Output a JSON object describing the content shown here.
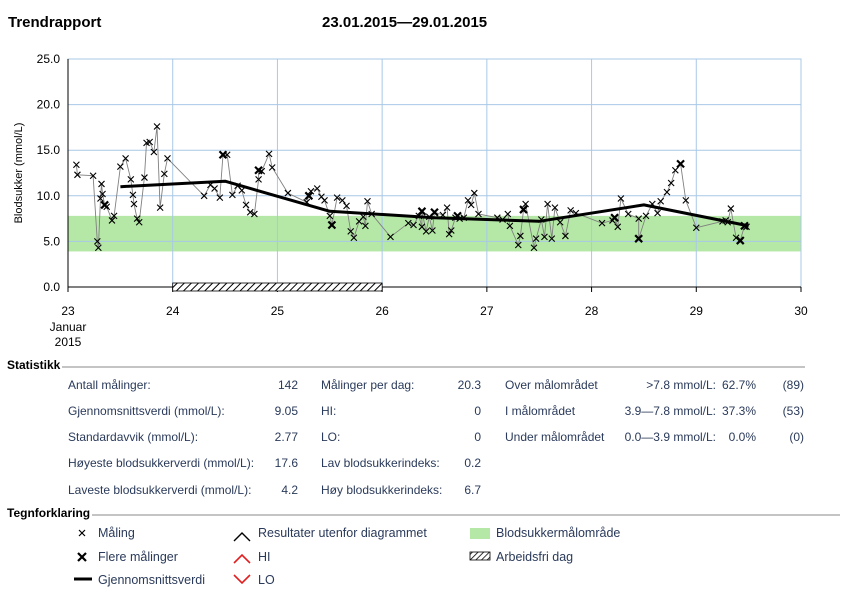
{
  "header": {
    "title": "Trendrapport",
    "date_range": "23.01.2015—29.01.2015"
  },
  "colors": {
    "target_band": "#b5e8a6",
    "grid": "#a9c8e6",
    "measurement_line": "#808080",
    "average_line": "#000000",
    "hi_marker": "#e02020",
    "lo_marker": "#e02020"
  },
  "chart_data": {
    "type": "scatter",
    "title": "",
    "ylabel": "Blodsukker (mmol/L)",
    "ylim": [
      0,
      25
    ],
    "yticks": [
      "25.0",
      "20.0",
      "15.0",
      "10.0",
      "5.0",
      "0.0"
    ],
    "xlim": [
      23,
      30
    ],
    "xticks": [
      "23",
      "24",
      "25",
      "26",
      "27",
      "28",
      "29",
      "30"
    ],
    "xtick_sub": [
      "Januar",
      "2015"
    ],
    "grid": true,
    "target_range": [
      3.9,
      7.8
    ],
    "non_working_day": [
      24,
      26
    ],
    "series": [
      {
        "name": "Måling",
        "points": [
          [
            23.08,
            13.4
          ],
          [
            23.09,
            12.3
          ],
          [
            23.24,
            12.2
          ],
          [
            23.28,
            5.0
          ],
          [
            23.29,
            4.3
          ],
          [
            23.31,
            9.7
          ],
          [
            23.32,
            11.3
          ],
          [
            23.33,
            10.2
          ],
          [
            23.37,
            8.8
          ],
          [
            23.42,
            7.3
          ],
          [
            23.44,
            7.8
          ],
          [
            23.5,
            13.2
          ],
          [
            23.55,
            14.1
          ],
          [
            23.6,
            11.8
          ],
          [
            23.62,
            10.1
          ],
          [
            23.63,
            9.1
          ],
          [
            23.66,
            7.5
          ],
          [
            23.68,
            7.1
          ],
          [
            23.73,
            12.0
          ],
          [
            23.75,
            15.8
          ],
          [
            23.78,
            15.9
          ],
          [
            23.82,
            14.8
          ],
          [
            23.85,
            17.6
          ],
          [
            23.88,
            8.7
          ],
          [
            23.92,
            12.4
          ],
          [
            23.95,
            14.1
          ],
          [
            24.3,
            10.0
          ],
          [
            24.36,
            11.2
          ],
          [
            24.4,
            10.8
          ],
          [
            24.45,
            9.8
          ],
          [
            24.52,
            14.5
          ],
          [
            24.57,
            10.1
          ],
          [
            24.62,
            11.1
          ],
          [
            24.66,
            10.6
          ],
          [
            24.7,
            9.0
          ],
          [
            24.74,
            8.2
          ],
          [
            24.78,
            8.0
          ],
          [
            24.82,
            11.8
          ],
          [
            24.85,
            12.7
          ],
          [
            24.92,
            14.6
          ],
          [
            24.95,
            13.1
          ],
          [
            25.1,
            10.3
          ],
          [
            25.28,
            9.3
          ],
          [
            25.32,
            10.5
          ],
          [
            25.38,
            10.8
          ],
          [
            25.42,
            9.9
          ],
          [
            25.45,
            9.5
          ],
          [
            25.5,
            7.8
          ],
          [
            25.57,
            9.8
          ],
          [
            25.62,
            9.5
          ],
          [
            25.66,
            8.9
          ],
          [
            25.7,
            6.1
          ],
          [
            25.73,
            5.4
          ],
          [
            25.78,
            7.2
          ],
          [
            25.82,
            7.7
          ],
          [
            25.84,
            6.7
          ],
          [
            25.86,
            9.4
          ],
          [
            25.9,
            8.0
          ],
          [
            26.08,
            5.5
          ],
          [
            26.25,
            7.0
          ],
          [
            26.3,
            6.8
          ],
          [
            26.35,
            7.8
          ],
          [
            26.38,
            6.6
          ],
          [
            26.42,
            6.1
          ],
          [
            26.45,
            7.7
          ],
          [
            26.48,
            6.2
          ],
          [
            26.58,
            7.9
          ],
          [
            26.62,
            8.7
          ],
          [
            26.64,
            5.8
          ],
          [
            26.66,
            6.2
          ],
          [
            26.7,
            7.6
          ],
          [
            26.74,
            7.5
          ],
          [
            26.78,
            7.6
          ],
          [
            26.82,
            9.5
          ],
          [
            26.85,
            9.0
          ],
          [
            26.88,
            10.3
          ],
          [
            26.92,
            8.0
          ],
          [
            27.1,
            7.6
          ],
          [
            27.15,
            7.4
          ],
          [
            27.2,
            8.0
          ],
          [
            27.22,
            6.7
          ],
          [
            27.3,
            4.6
          ],
          [
            27.32,
            5.6
          ],
          [
            27.35,
            8.4
          ],
          [
            27.37,
            9.1
          ],
          [
            27.45,
            4.3
          ],
          [
            27.47,
            5.3
          ],
          [
            27.52,
            7.4
          ],
          [
            27.55,
            5.5
          ],
          [
            27.58,
            9.1
          ],
          [
            27.62,
            5.3
          ],
          [
            27.65,
            8.7
          ],
          [
            27.7,
            7.1
          ],
          [
            27.75,
            5.6
          ],
          [
            27.8,
            8.4
          ],
          [
            27.85,
            8.1
          ],
          [
            28.1,
            7.0
          ],
          [
            28.2,
            7.3
          ],
          [
            28.25,
            6.6
          ],
          [
            28.28,
            9.7
          ],
          [
            28.35,
            8.0
          ],
          [
            28.45,
            7.5
          ],
          [
            28.52,
            7.8
          ],
          [
            28.58,
            9.1
          ],
          [
            28.63,
            8.1
          ],
          [
            28.66,
            9.4
          ],
          [
            28.72,
            10.4
          ],
          [
            28.76,
            11.4
          ],
          [
            28.8,
            12.8
          ],
          [
            28.85,
            13.5
          ],
          [
            28.9,
            9.5
          ],
          [
            29.0,
            6.5
          ],
          [
            29.25,
            7.2
          ],
          [
            29.28,
            7.3
          ],
          [
            29.3,
            7.1
          ],
          [
            29.33,
            8.6
          ],
          [
            29.38,
            5.4
          ],
          [
            29.42,
            5.0
          ],
          [
            29.48,
            6.6
          ]
        ]
      },
      {
        "name": "Flere målinger",
        "points": [
          [
            23.35,
            9.0
          ],
          [
            24.48,
            14.5
          ],
          [
            24.82,
            12.8
          ],
          [
            25.3,
            10.0
          ],
          [
            25.52,
            6.8
          ],
          [
            26.38,
            8.3
          ],
          [
            26.5,
            8.2
          ],
          [
            26.72,
            7.8
          ],
          [
            27.35,
            8.5
          ],
          [
            28.22,
            7.6
          ],
          [
            28.45,
            5.3
          ],
          [
            28.85,
            13.5
          ],
          [
            29.42,
            5.1
          ],
          [
            29.46,
            6.7
          ]
        ]
      },
      {
        "name": "Gjennomsnittsverdi",
        "points": [
          [
            23.5,
            11.0
          ],
          [
            24.5,
            11.6
          ],
          [
            25.5,
            8.3
          ],
          [
            26.5,
            7.6
          ],
          [
            27.5,
            7.2
          ],
          [
            28.5,
            9.0
          ],
          [
            29.5,
            6.7
          ]
        ]
      }
    ]
  },
  "stats": {
    "section_label": "Statistikk",
    "col1": [
      {
        "label": "Antall målinger:",
        "value": "142"
      },
      {
        "label": "Gjennomsnittsverdi (mmol/L):",
        "value": "9.05"
      },
      {
        "label": "Standardavvik (mmol/L):",
        "value": "2.77"
      },
      {
        "label": "Høyeste blodsukkerverdi (mmol/L):",
        "value": "17.6"
      },
      {
        "label": "Laveste blodsukkerverdi (mmol/L):",
        "value": "4.2"
      }
    ],
    "col2": [
      {
        "label": "Målinger per dag:",
        "value": "20.3"
      },
      {
        "label": "HI:",
        "value": "0"
      },
      {
        "label": "LO:",
        "value": "0"
      },
      {
        "label": "Lav blodsukkerindeks:",
        "value": "0.2"
      },
      {
        "label": "Høy blodsukkerindeks:",
        "value": "6.7"
      }
    ],
    "col3": [
      {
        "label": "Over målområdet",
        "range": ">7.8 mmol/L:",
        "pct": "62.7%",
        "count": "(89)"
      },
      {
        "label": "I målområdet",
        "range": "3.9—7.8 mmol/L:",
        "pct": "37.3%",
        "count": "(53)"
      },
      {
        "label": "Under målområdet",
        "range": "0.0—3.9 mmol/L:",
        "pct": "0.0%",
        "count": "(0)"
      }
    ]
  },
  "legend": {
    "section_label": "Tegnforklaring",
    "items": {
      "measurement": "Måling",
      "multiple": "Flere målinger",
      "average": "Gjennomsnittsverdi",
      "out_of_range": "Resultater utenfor diagrammet",
      "hi": "HI",
      "lo": "LO",
      "target": "Blodsukkermålområde",
      "day_off": "Arbeidsfri dag"
    }
  }
}
